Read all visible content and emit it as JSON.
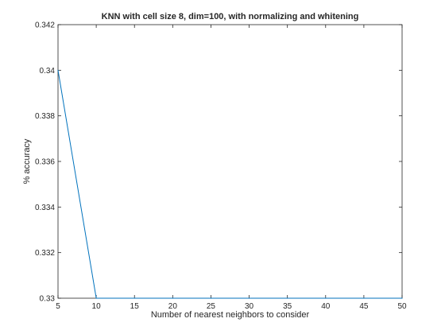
{
  "chart_data": {
    "type": "line",
    "title": "KNN with cell size 8, dim=100, with normalizing and whitening",
    "xlabel": "Number of nearest neighbors to consider",
    "ylabel": "% accuracy",
    "xlim": [
      5,
      50
    ],
    "ylim": [
      0.33,
      0.342
    ],
    "xticks": [
      5,
      10,
      15,
      20,
      25,
      30,
      35,
      40,
      45,
      50
    ],
    "yticks": [
      0.33,
      0.332,
      0.334,
      0.336,
      0.338,
      0.34,
      0.342
    ],
    "xtick_labels": [
      "5",
      "10",
      "15",
      "20",
      "25",
      "30",
      "35",
      "40",
      "45",
      "50"
    ],
    "ytick_labels": [
      "0.33",
      "0.332",
      "0.334",
      "0.336",
      "0.338",
      "0.34",
      "0.342"
    ],
    "grid": false,
    "series": [
      {
        "color": "#0072bd",
        "x": [
          5,
          10,
          15,
          20,
          25,
          30,
          35,
          40,
          45,
          50
        ],
        "y": [
          0.34,
          0.33,
          0.33,
          0.33,
          0.33,
          0.33,
          0.33,
          0.33,
          0.33,
          0.33
        ]
      }
    ]
  }
}
